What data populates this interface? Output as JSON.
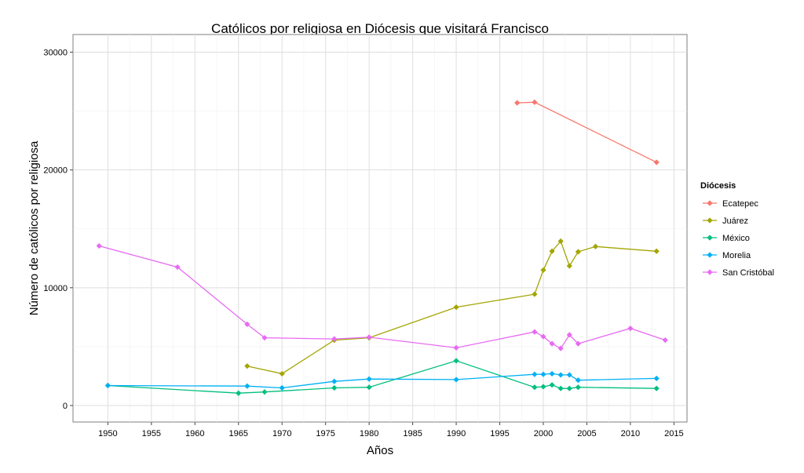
{
  "chart_data": {
    "type": "line",
    "title": "Católicos por religiosa en Diócesis que visitará Francisco",
    "xlabel": "Años",
    "ylabel": "Número de católicos por religiosa",
    "xlim": [
      1946,
      2016.5
    ],
    "ylim": [
      -1400,
      31500
    ],
    "x_ticks": [
      1950,
      1955,
      1960,
      1965,
      1970,
      1975,
      1980,
      1985,
      1990,
      1995,
      2000,
      2005,
      2010,
      2015
    ],
    "y_ticks": [
      0,
      10000,
      20000,
      30000
    ],
    "grid": true,
    "legend": {
      "title": "Diócesis",
      "position": "right"
    },
    "series": [
      {
        "name": "Ecatepec",
        "color": "#F8766D",
        "x": [
          1997,
          1999,
          2013
        ],
        "y": [
          25700,
          25750,
          20650
        ]
      },
      {
        "name": "Juárez",
        "color": "#A3A500",
        "x": [
          1966,
          1970,
          1976,
          1980,
          1990,
          1999,
          2000,
          2001,
          2002,
          2003,
          2004,
          2006,
          2013
        ],
        "y": [
          3350,
          2700,
          5550,
          5750,
          8350,
          9450,
          11500,
          13100,
          13950,
          11850,
          13050,
          13500,
          13100
        ]
      },
      {
        "name": "México",
        "color": "#00BF7D",
        "x": [
          1950,
          1965,
          1968,
          1976,
          1980,
          1990,
          1999,
          2000,
          2001,
          2002,
          2003,
          2004,
          2013
        ],
        "y": [
          1700,
          1050,
          1150,
          1500,
          1550,
          3800,
          1550,
          1600,
          1750,
          1450,
          1450,
          1550,
          1450
        ]
      },
      {
        "name": "Morelia",
        "color": "#00B0F6",
        "x": [
          1950,
          1966,
          1970,
          1976,
          1980,
          1990,
          1999,
          2000,
          2001,
          2002,
          2003,
          2004,
          2013
        ],
        "y": [
          1700,
          1650,
          1500,
          2050,
          2250,
          2200,
          2650,
          2650,
          2700,
          2600,
          2600,
          2150,
          2300
        ]
      },
      {
        "name": "San Cristóbal",
        "color": "#E76BF3",
        "x": [
          1949,
          1958,
          1966,
          1968,
          1976,
          1980,
          1990,
          1999,
          2000,
          2001,
          2002,
          2003,
          2004,
          2010,
          2014
        ],
        "y": [
          13550,
          11750,
          6900,
          5750,
          5650,
          5800,
          4900,
          6250,
          5850,
          5250,
          4850,
          6000,
          5250,
          6550,
          5550
        ]
      }
    ]
  }
}
